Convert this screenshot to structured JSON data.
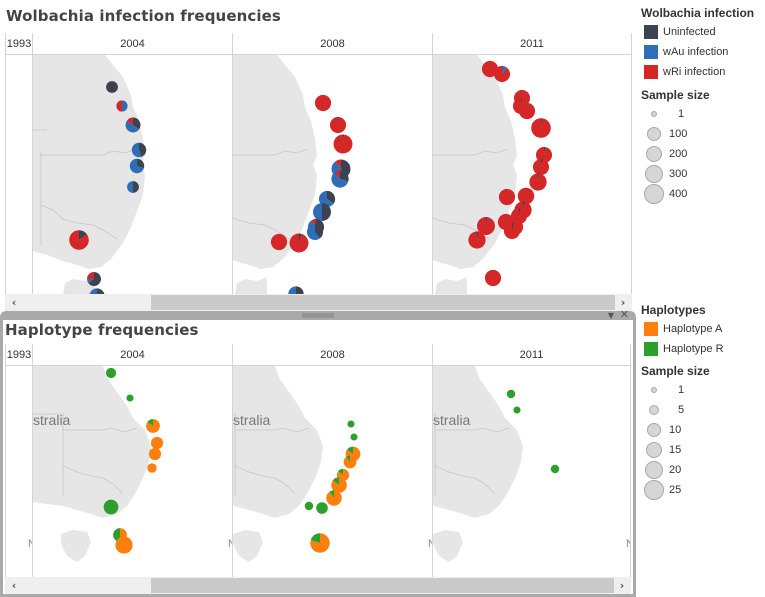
{
  "top_view": {
    "title": "Wolbachia infection frequencies",
    "columns": [
      "1993",
      "2004",
      "2008",
      "2011"
    ]
  },
  "bottom_view": {
    "title": "Haplotype frequencies",
    "columns": [
      "1993",
      "2004",
      "2008",
      "2011"
    ],
    "map_label": "stralia",
    "map_label_2004": "stralia",
    "map_label_2011": "stralia",
    "corner_letter": "N"
  },
  "panel": {
    "menu_icon": "▼",
    "close_icon": "✕"
  },
  "scrollbar": {
    "left_arrow": "‹",
    "right_arrow": "›"
  },
  "legend_wolbachia": {
    "title": "Wolbachia infection",
    "items": [
      {
        "label": "Uninfected",
        "color": "#3d4250"
      },
      {
        "label": "wAu infection",
        "color": "#2e6db7"
      },
      {
        "label": "wRi infection",
        "color": "#d62728"
      }
    ],
    "size_title": "Sample size",
    "sizes": [
      "1",
      "100",
      "200",
      "300",
      "400"
    ]
  },
  "legend_haplotype": {
    "title": "Haplotypes",
    "items": [
      {
        "label": "Haplotype A",
        "color": "#ff7f0e"
      },
      {
        "label": "Haplotype R",
        "color": "#2ca02c"
      }
    ],
    "size_title": "Sample size",
    "sizes": [
      "1",
      "5",
      "10",
      "15",
      "20",
      "25"
    ]
  },
  "chart_data": [
    {
      "type": "map-pie",
      "title": "Wolbachia infection frequencies",
      "facets": [
        "1993",
        "2004",
        "2008",
        "2011"
      ],
      "legend": [
        "Uninfected",
        "wAu infection",
        "wRi infection"
      ],
      "points": {
        "1993": [],
        "2004": [
          {
            "site": 1,
            "n": 60,
            "fractions": [
              1.0,
              0.0,
              0.0
            ]
          },
          {
            "site": 2,
            "n": 50,
            "fractions": [
              0.0,
              0.5,
              0.5
            ]
          },
          {
            "site": 3,
            "n": 120,
            "fractions": [
              0.35,
              0.5,
              0.15
            ]
          },
          {
            "site": 4,
            "n": 110,
            "fractions": [
              0.45,
              0.55,
              0.0
            ]
          },
          {
            "site": 5,
            "n": 110,
            "fractions": [
              0.3,
              0.7,
              0.0
            ]
          },
          {
            "site": 6,
            "n": 60,
            "fractions": [
              0.5,
              0.5,
              0.0
            ]
          },
          {
            "site": 7,
            "n": 250,
            "fractions": [
              0.15,
              0.0,
              0.85
            ]
          },
          {
            "site": 8,
            "n": 100,
            "fractions": [
              0.65,
              0.1,
              0.25
            ]
          },
          {
            "site": 9,
            "n": 130,
            "fractions": [
              0.5,
              0.5,
              0.0
            ]
          }
        ],
        "2008": [
          {
            "site": 1,
            "n": 150,
            "fractions": [
              0.0,
              0.0,
              1.0
            ]
          },
          {
            "site": 2,
            "n": 150,
            "fractions": [
              0.02,
              0.0,
              0.98
            ]
          },
          {
            "site": 3,
            "n": 230,
            "fractions": [
              0.02,
              0.0,
              0.98
            ]
          },
          {
            "site": 4,
            "n": 230,
            "fractions": [
              0.45,
              0.45,
              0.1
            ]
          },
          {
            "site": 5,
            "n": 180,
            "fractions": [
              0.3,
              0.6,
              0.1
            ]
          },
          {
            "site": 6,
            "n": 150,
            "fractions": [
              0.35,
              0.65,
              0.0
            ]
          },
          {
            "site": 7,
            "n": 200,
            "fractions": [
              0.5,
              0.5,
              0.0
            ]
          },
          {
            "site": 8,
            "n": 150,
            "fractions": [
              0.45,
              0.45,
              0.1
            ]
          },
          {
            "site": 9,
            "n": 150,
            "fractions": [
              0.4,
              0.6,
              0.0
            ]
          },
          {
            "site": 10,
            "n": 150,
            "fractions": [
              0.0,
              0.0,
              1.0
            ]
          },
          {
            "site": 11,
            "n": 230,
            "fractions": [
              0.05,
              0.0,
              0.95
            ]
          },
          {
            "site": 12,
            "n": 130,
            "fractions": [
              0.55,
              0.45,
              0.0
            ]
          }
        ],
        "2011": [
          {
            "site": 1,
            "n": 150,
            "fractions": [
              0.0,
              0.0,
              1.0
            ]
          },
          {
            "site": 2,
            "n": 150,
            "fractions": [
              0.0,
              0.1,
              0.9
            ]
          },
          {
            "site": 3,
            "n": 150,
            "fractions": [
              0.02,
              0.0,
              0.98
            ]
          },
          {
            "site": 4,
            "n": 150,
            "fractions": [
              0.02,
              0.0,
              0.98
            ]
          },
          {
            "site": 5,
            "n": 150,
            "fractions": [
              0.0,
              0.0,
              1.0
            ]
          },
          {
            "site": 6,
            "n": 250,
            "fractions": [
              0.02,
              0.0,
              0.98
            ]
          },
          {
            "site": 7,
            "n": 150,
            "fractions": [
              0.03,
              0.0,
              0.97
            ]
          },
          {
            "site": 8,
            "n": 150,
            "fractions": [
              0.03,
              0.0,
              0.97
            ]
          },
          {
            "site": 9,
            "n": 180,
            "fractions": [
              0.03,
              0.0,
              0.97
            ]
          },
          {
            "site": 10,
            "n": 150,
            "fractions": [
              0.0,
              0.0,
              1.0
            ]
          },
          {
            "site": 11,
            "n": 160,
            "fractions": [
              0.0,
              0.0,
              1.0
            ]
          },
          {
            "site": 12,
            "n": 180,
            "fractions": [
              0.03,
              0.0,
              0.97
            ]
          },
          {
            "site": 13,
            "n": 150,
            "fractions": [
              0.03,
              0.0,
              0.97
            ]
          },
          {
            "site": 14,
            "n": 150,
            "fractions": [
              0.0,
              0.0,
              1.0
            ]
          },
          {
            "site": 15,
            "n": 200,
            "fractions": [
              0.03,
              0.0,
              0.97
            ]
          },
          {
            "site": 16,
            "n": 150,
            "fractions": [
              0.0,
              0.0,
              1.0
            ]
          },
          {
            "site": 17,
            "n": 150,
            "fractions": [
              0.03,
              0.0,
              0.97
            ]
          },
          {
            "site": 18,
            "n": 180,
            "fractions": [
              0.03,
              0.0,
              0.97
            ]
          },
          {
            "site": 19,
            "n": 150,
            "fractions": [
              0.0,
              0.0,
              1.0
            ]
          }
        ]
      }
    },
    {
      "type": "map-pie",
      "title": "Haplotype frequencies",
      "facets": [
        "1993",
        "2004",
        "2008",
        "2011"
      ],
      "legend": [
        "Haplotype A",
        "Haplotype R"
      ],
      "points": {
        "1993": [],
        "2004": [
          {
            "site": 1,
            "n": 4,
            "fractions": [
              0.0,
              1.0
            ]
          },
          {
            "site": 2,
            "n": 1,
            "fractions": [
              0.0,
              1.0
            ]
          },
          {
            "site": 3,
            "n": 10,
            "fractions": [
              0.85,
              0.15
            ]
          },
          {
            "site": 4,
            "n": 7,
            "fractions": [
              1.0,
              0.0
            ]
          },
          {
            "site": 5,
            "n": 7,
            "fractions": [
              1.0,
              0.0
            ]
          },
          {
            "site": 6,
            "n": 3,
            "fractions": [
              1.0,
              0.0
            ]
          },
          {
            "site": 7,
            "n": 12,
            "fractions": [
              0.0,
              1.0
            ]
          },
          {
            "site": 8,
            "n": 10,
            "fractions": [
              0.45,
              0.55
            ]
          },
          {
            "site": 9,
            "n": 18,
            "fractions": [
              1.0,
              0.0
            ]
          }
        ],
        "2008": [
          {
            "site": 1,
            "n": 1,
            "fractions": [
              0.0,
              1.0
            ]
          },
          {
            "site": 2,
            "n": 1,
            "fractions": [
              0.0,
              1.0
            ]
          },
          {
            "site": 3,
            "n": 12,
            "fractions": [
              0.85,
              0.15
            ]
          },
          {
            "site": 4,
            "n": 8,
            "fractions": [
              0.9,
              0.1
            ]
          },
          {
            "site": 5,
            "n": 7,
            "fractions": [
              0.85,
              0.15
            ]
          },
          {
            "site": 6,
            "n": 14,
            "fractions": [
              0.85,
              0.15
            ]
          },
          {
            "site": 7,
            "n": 14,
            "fractions": [
              0.9,
              0.1
            ]
          },
          {
            "site": 8,
            "n": 2,
            "fractions": [
              0.0,
              1.0
            ]
          },
          {
            "site": 9,
            "n": 6,
            "fractions": [
              0.0,
              1.0
            ]
          },
          {
            "site": 10,
            "n": 25,
            "fractions": [
              0.8,
              0.2
            ]
          }
        ],
        "2011": [
          {
            "site": 1,
            "n": 2,
            "fractions": [
              0.0,
              1.0
            ]
          },
          {
            "site": 2,
            "n": 1,
            "fractions": [
              0.0,
              1.0
            ]
          },
          {
            "site": 3,
            "n": 2,
            "fractions": [
              0.0,
              1.0
            ]
          }
        ]
      }
    }
  ]
}
